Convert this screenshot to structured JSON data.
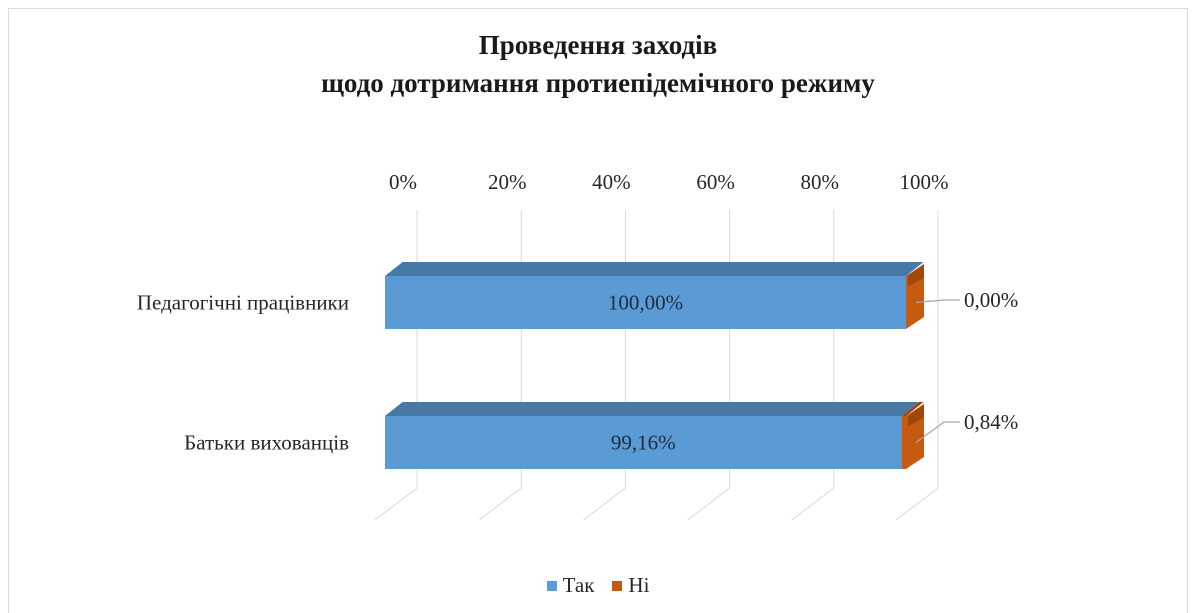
{
  "chart_data": {
    "type": "bar",
    "orientation": "horizontal",
    "stacked": true,
    "three_d": true,
    "title": "Проведення заходів щодо дотримання протиепідемічного режиму",
    "title_lines": [
      "Проведення заходів",
      "щодо дотримання протиепідемічного режиму"
    ],
    "categories": [
      "Педагогічні працівники",
      "Батьки вихованців"
    ],
    "series": [
      {
        "name": "Так",
        "values": [
          100.0,
          99.16
        ],
        "labels": [
          "100,00%",
          "99,16%"
        ],
        "color": "#5b9bd5"
      },
      {
        "name": "Ні",
        "values": [
          0.0,
          0.84
        ],
        "labels": [
          "0,00%",
          "0,84%"
        ],
        "color": "#c55a11"
      }
    ],
    "xticks": [
      "0%",
      "20%",
      "40%",
      "60%",
      "80%",
      "100%"
    ],
    "xlim": [
      0,
      100
    ],
    "xaxis_position": "top",
    "grid": true,
    "legend": "bottom"
  }
}
